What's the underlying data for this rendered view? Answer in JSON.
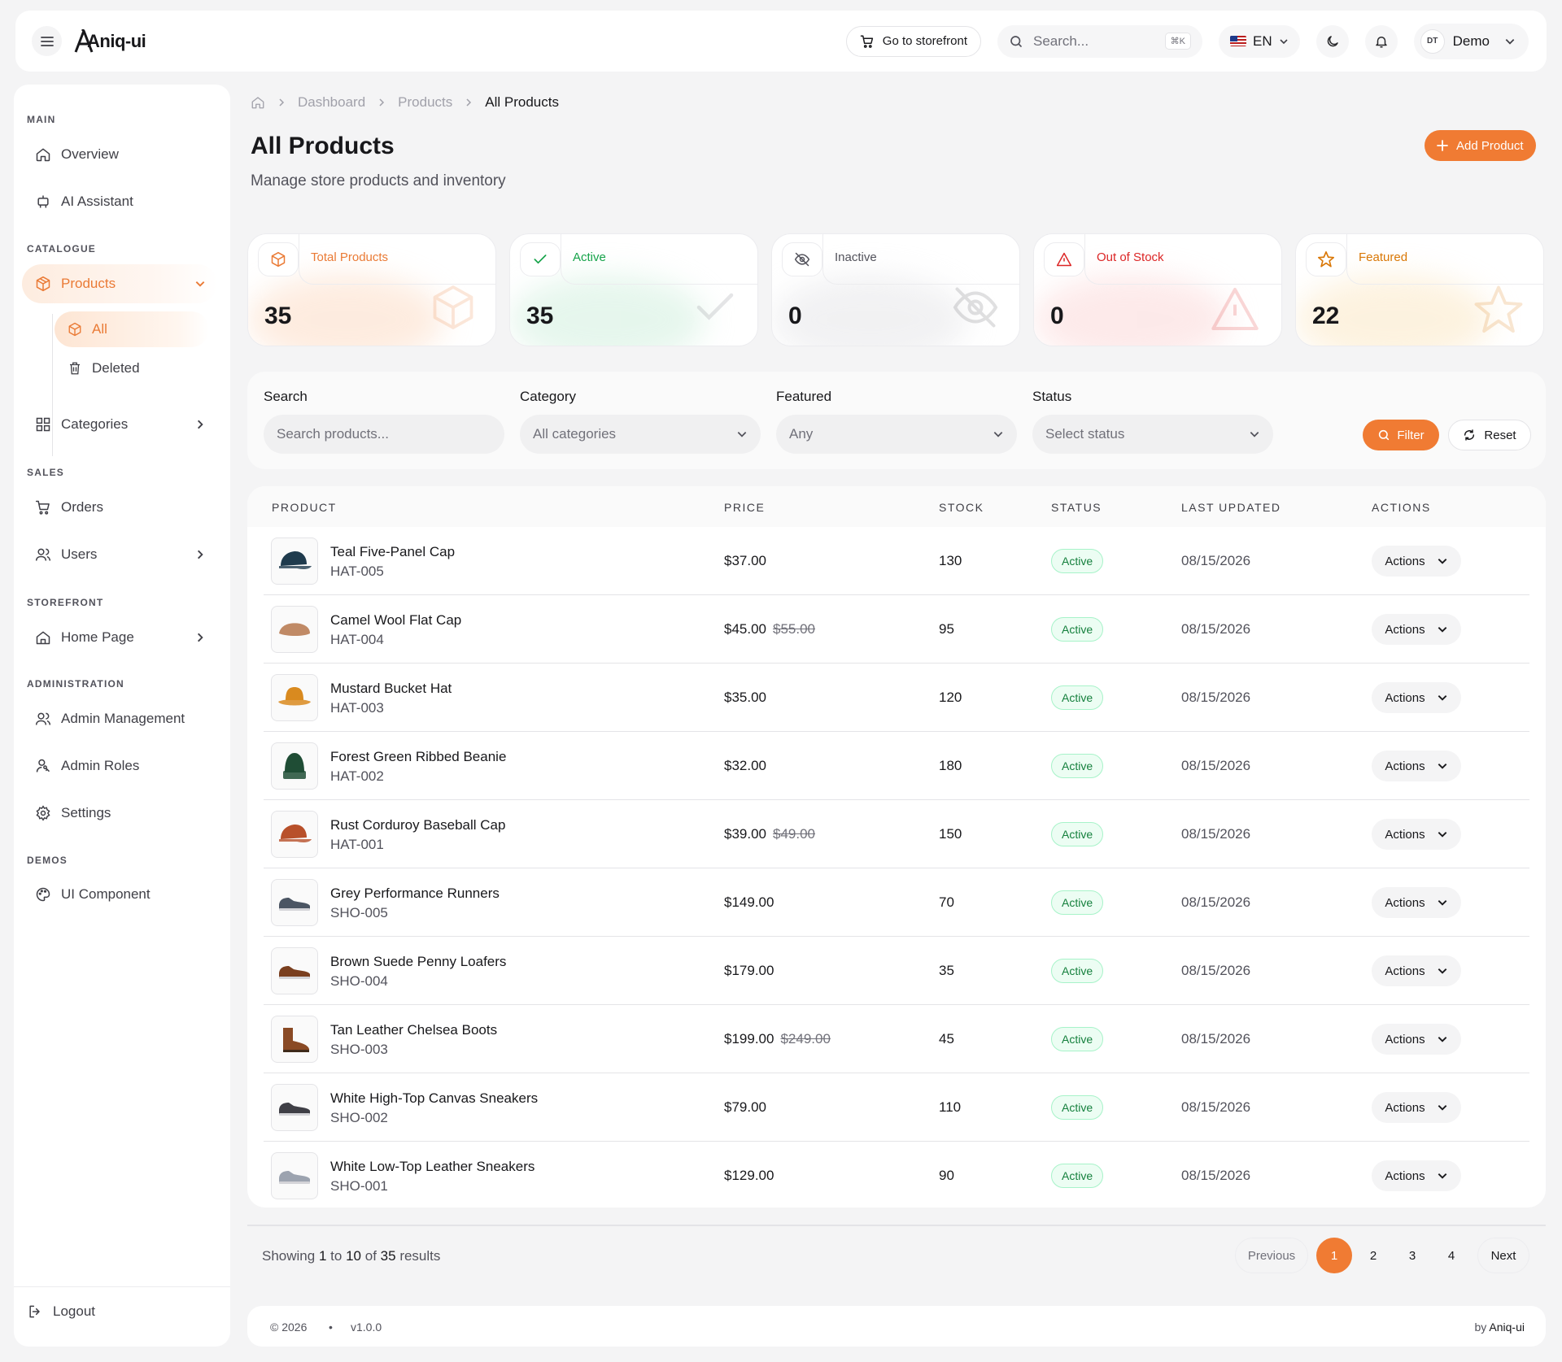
{
  "app": {
    "brand": "Aniq-ui"
  },
  "topbar": {
    "storefront_label": "Go to storefront",
    "search_placeholder": "Search...",
    "search_kbd": "⌘K",
    "language": "EN",
    "avatar_initials": "DT",
    "user_name": "Demo"
  },
  "sidebar": {
    "sections": {
      "main": "MAIN",
      "catalogue": "CATALOGUE",
      "sales": "SALES",
      "storefront": "STOREFRONT",
      "administration": "ADMINISTRATION",
      "demos": "DEMOS"
    },
    "items": {
      "overview": "Overview",
      "ai_assistant": "AI Assistant",
      "products": "Products",
      "all": "All",
      "deleted": "Deleted",
      "categories": "Categories",
      "orders": "Orders",
      "users": "Users",
      "home_page": "Home Page",
      "admin_management": "Admin Management",
      "admin_roles": "Admin Roles",
      "settings": "Settings",
      "ui_component": "UI Component",
      "logout": "Logout"
    }
  },
  "breadcrumb": {
    "dashboard": "Dashboard",
    "products": "Products",
    "current": "All Products"
  },
  "page": {
    "title": "All Products",
    "subtitle": "Manage store products and inventory",
    "add_label": "Add Product"
  },
  "stats": [
    {
      "label": "Total Products",
      "value": "35",
      "color": "#ea7a35",
      "icon": "box-icon"
    },
    {
      "label": "Active",
      "value": "35",
      "color": "#16a34a",
      "icon": "check-icon"
    },
    {
      "label": "Inactive",
      "value": "0",
      "color": "#52525b",
      "icon": "eye-off-icon"
    },
    {
      "label": "Out of Stock",
      "value": "0",
      "color": "#dc2626",
      "icon": "alert-icon"
    },
    {
      "label": "Featured",
      "value": "22",
      "color": "#d97706",
      "icon": "star-icon"
    }
  ],
  "filters": {
    "search_label": "Search",
    "search_placeholder": "Search products...",
    "category_label": "Category",
    "category_value": "All categories",
    "featured_label": "Featured",
    "featured_value": "Any",
    "status_label": "Status",
    "status_value": "Select status",
    "filter_button": "Filter",
    "reset_button": "Reset"
  },
  "table": {
    "headers": {
      "product": "PRODUCT",
      "price": "PRICE",
      "stock": "STOCK",
      "status": "STATUS",
      "updated": "LAST UPDATED",
      "actions": "ACTIONS"
    },
    "rows": [
      {
        "name": "Teal Five-Panel Cap",
        "sku": "HAT-005",
        "price": "$37.00",
        "old_price": "",
        "stock": "130",
        "status": "Active",
        "updated": "08/15/2026",
        "actions": "Actions",
        "thumb": "cap-icon",
        "thumb_color": "#1f3b4d"
      },
      {
        "name": "Camel Wool Flat Cap",
        "sku": "HAT-004",
        "price": "$45.00",
        "old_price": "$55.00",
        "stock": "95",
        "status": "Active",
        "updated": "08/15/2026",
        "actions": "Actions",
        "thumb": "flat-cap-icon",
        "thumb_color": "#c08a66"
      },
      {
        "name": "Mustard Bucket Hat",
        "sku": "HAT-003",
        "price": "$35.00",
        "old_price": "",
        "stock": "120",
        "status": "Active",
        "updated": "08/15/2026",
        "actions": "Actions",
        "thumb": "bucket-hat-icon",
        "thumb_color": "#d98a1f"
      },
      {
        "name": "Forest Green Ribbed Beanie",
        "sku": "HAT-002",
        "price": "$32.00",
        "old_price": "",
        "stock": "180",
        "status": "Active",
        "updated": "08/15/2026",
        "actions": "Actions",
        "thumb": "beanie-icon",
        "thumb_color": "#1f4d35"
      },
      {
        "name": "Rust Corduroy Baseball Cap",
        "sku": "HAT-001",
        "price": "$39.00",
        "old_price": "$49.00",
        "stock": "150",
        "status": "Active",
        "updated": "08/15/2026",
        "actions": "Actions",
        "thumb": "cap-icon",
        "thumb_color": "#b8502a"
      },
      {
        "name": "Grey Performance Runners",
        "sku": "SHO-005",
        "price": "$149.00",
        "old_price": "",
        "stock": "70",
        "status": "Active",
        "updated": "08/15/2026",
        "actions": "Actions",
        "thumb": "shoe-icon",
        "thumb_color": "#4b5563"
      },
      {
        "name": "Brown Suede Penny Loafers",
        "sku": "SHO-004",
        "price": "$179.00",
        "old_price": "",
        "stock": "35",
        "status": "Active",
        "updated": "08/15/2026",
        "actions": "Actions",
        "thumb": "shoe-icon",
        "thumb_color": "#7a3f1f"
      },
      {
        "name": "Tan Leather Chelsea Boots",
        "sku": "SHO-003",
        "price": "$199.00",
        "old_price": "$249.00",
        "stock": "45",
        "status": "Active",
        "updated": "08/15/2026",
        "actions": "Actions",
        "thumb": "boot-icon",
        "thumb_color": "#8a4a25"
      },
      {
        "name": "White High-Top Canvas Sneakers",
        "sku": "SHO-002",
        "price": "$79.00",
        "old_price": "",
        "stock": "110",
        "status": "Active",
        "updated": "08/15/2026",
        "actions": "Actions",
        "thumb": "shoe-icon",
        "thumb_color": "#3f3f46"
      },
      {
        "name": "White Low-Top Leather Sneakers",
        "sku": "SHO-001",
        "price": "$129.00",
        "old_price": "",
        "stock": "90",
        "status": "Active",
        "updated": "08/15/2026",
        "actions": "Actions",
        "thumb": "shoe-icon",
        "thumb_color": "#9ca3af"
      }
    ]
  },
  "pagination": {
    "showing_prefix": "Showing",
    "from": "1",
    "to_word": "to",
    "to": "10",
    "of_word": "of",
    "total": "35",
    "results_word": "results",
    "previous": "Previous",
    "pages": [
      "1",
      "2",
      "3",
      "4"
    ],
    "current": "1",
    "next": "Next"
  },
  "footer": {
    "copyright": "© 2026",
    "separator": "•",
    "version": "v1.0.0",
    "by": "by",
    "brand": "Aniq-ui"
  },
  "colors": {
    "accent": "#f07b33",
    "success": "#16a34a"
  }
}
